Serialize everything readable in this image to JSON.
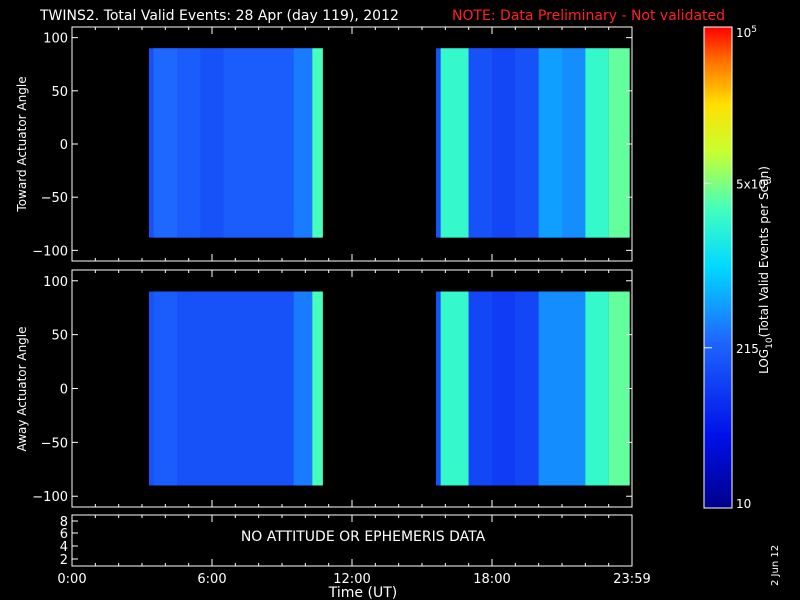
{
  "header": {
    "title": "TWINS2. Total Valid Events: 28 Apr (day 119), 2012",
    "note": "NOTE: Data Preliminary - Not validated"
  },
  "footer": {
    "date_stamp": "2 Jun 12"
  },
  "colors": {
    "background": "#000000",
    "axis": "#ffffff",
    "note": "#ff2020",
    "colormap": "rainbow (blue to red)"
  },
  "chart_data": [
    {
      "type": "heatmap",
      "panel": "toward",
      "ylabel": "Toward Actuator Angle",
      "ylim": [
        -110,
        110
      ],
      "yticks": [
        100,
        50,
        0,
        -50,
        -100
      ],
      "xlim_hours": [
        0,
        24
      ],
      "data_intervals_hours": [
        [
          3.3,
          10.75
        ],
        [
          15.6,
          23.9
        ]
      ],
      "y_coverage": [
        -88,
        90
      ],
      "time_hours": [
        3.5,
        4.5,
        5.5,
        6.5,
        7.5,
        8.5,
        9.5,
        10.3,
        15.8,
        17,
        18,
        19,
        20,
        21,
        22,
        23
      ],
      "log_counts": [
        2.4,
        2.3,
        2.2,
        2.3,
        2.3,
        2.3,
        2.5,
        3.5,
        3.4,
        2.2,
        2.1,
        2.2,
        2.7,
        2.6,
        3.4,
        3.6
      ]
    },
    {
      "type": "heatmap",
      "panel": "away",
      "ylabel": "Away Actuator Angle",
      "ylim": [
        -110,
        110
      ],
      "yticks": [
        100,
        50,
        0,
        -50,
        -100
      ],
      "xlim_hours": [
        0,
        24
      ],
      "data_intervals_hours": [
        [
          3.3,
          10.75
        ],
        [
          15.6,
          23.9
        ]
      ],
      "y_coverage": [
        -90,
        90
      ],
      "time_hours": [
        3.5,
        4.5,
        5.5,
        6.5,
        7.5,
        8.5,
        9.5,
        10.3,
        15.8,
        17,
        18,
        19,
        20,
        21,
        22,
        23
      ],
      "log_counts": [
        2.3,
        2.2,
        2.2,
        2.2,
        2.2,
        2.2,
        2.5,
        3.5,
        3.4,
        2.1,
        2.0,
        2.1,
        2.6,
        2.6,
        3.4,
        3.6
      ]
    },
    {
      "type": "line",
      "panel": "ephemeris",
      "yticks": [
        "8",
        "6",
        "4",
        "2"
      ],
      "message": "NO ATTITUDE OR EPHEMERIS DATA",
      "xlabel": "Time (UT)",
      "xticks": [
        "0:00",
        "6:00",
        "12:00",
        "18:00",
        "23:59"
      ]
    }
  ],
  "colorbar": {
    "label": "LOG10(Total Valid Events per Scan)",
    "label_base": "LOG",
    "label_sub": "10",
    "label_rest": "(Total Valid Events per Scan)",
    "ticks": [
      {
        "text": "10",
        "value": 10
      },
      {
        "text": "215",
        "value": 215
      },
      {
        "text": "5x10^3",
        "base": "5x10",
        "exp": "3",
        "value": 5000
      },
      {
        "text": "10^5",
        "base": "10",
        "exp": "5",
        "value": 100000
      }
    ],
    "range": [
      10,
      100000
    ]
  }
}
